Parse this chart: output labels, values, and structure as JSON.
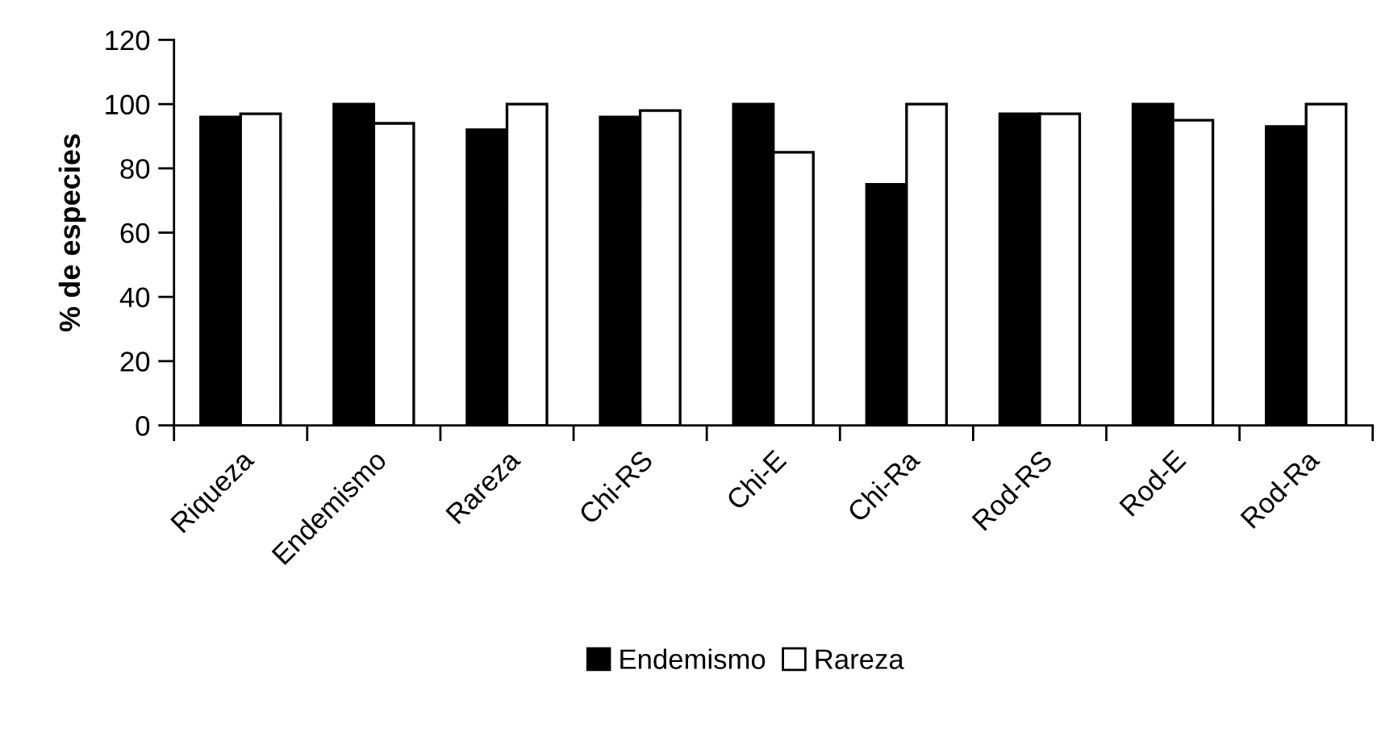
{
  "chart_data": {
    "type": "bar",
    "ylabel": "% de especies",
    "categories": [
      "Riqueza",
      "Endemismo",
      "Rareza",
      "Chi-RS",
      "Chi-E",
      "Chi-Ra",
      "Rod-RS",
      "Rod-E",
      "Rod-Ra"
    ],
    "series": [
      {
        "name": "Endemismo",
        "color": "#000000",
        "values": [
          96,
          100,
          92,
          96,
          100,
          75,
          97,
          100,
          93
        ]
      },
      {
        "name": "Rareza",
        "color": "#ffffff",
        "values": [
          97,
          94,
          100,
          98,
          85,
          100,
          97,
          95,
          100
        ]
      }
    ],
    "ylim": [
      0,
      120
    ],
    "yticks": [
      0,
      20,
      40,
      60,
      80,
      100,
      120
    ],
    "grid": false,
    "legend": "bottom"
  }
}
